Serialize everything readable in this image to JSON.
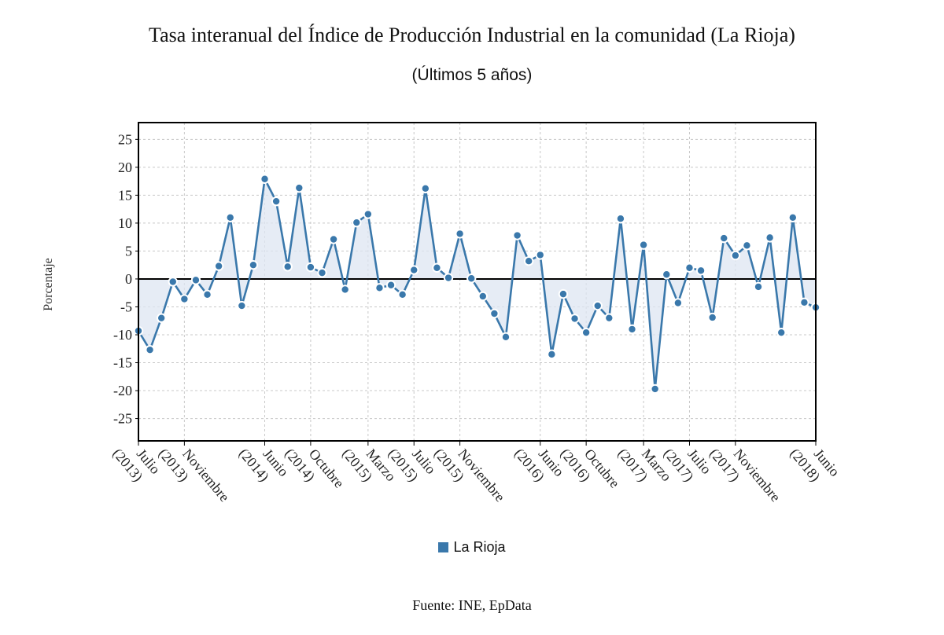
{
  "chart_data": {
    "type": "line",
    "title": "Tasa interanual del Índice de Producción Industrial en la comunidad (La Rioja)",
    "subtitle": "(Últimos 5 años)",
    "ylabel": "Porcentaje",
    "xlabel": "",
    "ylim": [
      -29,
      28
    ],
    "yticks": [
      25,
      20,
      15,
      10,
      5,
      0,
      -5,
      -10,
      -15,
      -20,
      -25
    ],
    "grid": true,
    "legend_position": "bottom-center",
    "series_color": "#3a78ab",
    "fill_color": "#dde6f2",
    "source": "Fuente: INE, EpData",
    "x_tick_labels": [
      {
        "index": 0,
        "line1": "Julio",
        "line2": "(2013)"
      },
      {
        "index": 4,
        "line1": "Noviembre",
        "line2": "(2013)"
      },
      {
        "index": 11,
        "line1": "Junio",
        "line2": "(2014)"
      },
      {
        "index": 15,
        "line1": "Octubre",
        "line2": "(2014)"
      },
      {
        "index": 20,
        "line1": "Marzo",
        "line2": "(2015)"
      },
      {
        "index": 24,
        "line1": "Julio",
        "line2": "(2015)"
      },
      {
        "index": 28,
        "line1": "Noviembre",
        "line2": "(2015)"
      },
      {
        "index": 35,
        "line1": "Junio",
        "line2": "(2016)"
      },
      {
        "index": 39,
        "line1": "Octubre",
        "line2": "(2016)"
      },
      {
        "index": 44,
        "line1": "Marzo",
        "line2": "(2017)"
      },
      {
        "index": 48,
        "line1": "Julio",
        "line2": "(2017)"
      },
      {
        "index": 52,
        "line1": "Noviembre",
        "line2": "(2017)"
      },
      {
        "index": 59,
        "line1": "Junio",
        "line2": "(2018)"
      }
    ],
    "series": [
      {
        "name": "La Rioja",
        "values": [
          -9.3,
          -12.7,
          -7.0,
          -0.5,
          -3.6,
          -0.2,
          -2.8,
          2.3,
          11.0,
          -4.8,
          2.5,
          17.9,
          13.9,
          2.2,
          16.3,
          2.1,
          1.1,
          7.1,
          -1.9,
          10.1,
          11.6,
          -1.6,
          -1.1,
          -2.8,
          1.6,
          16.2,
          2.0,
          0.2,
          8.1,
          0.1,
          -3.1,
          -6.2,
          -10.4,
          7.8,
          3.2,
          4.3,
          -13.5,
          -2.7,
          -7.1,
          -9.6,
          -4.8,
          -7.0,
          10.8,
          -9.0,
          6.1,
          -19.7,
          0.8,
          -4.3,
          2.0,
          1.5,
          -6.9,
          7.3,
          4.2,
          6.0,
          -1.4,
          7.4,
          -9.6,
          11.0,
          -4.2,
          -5.1
        ]
      }
    ]
  }
}
